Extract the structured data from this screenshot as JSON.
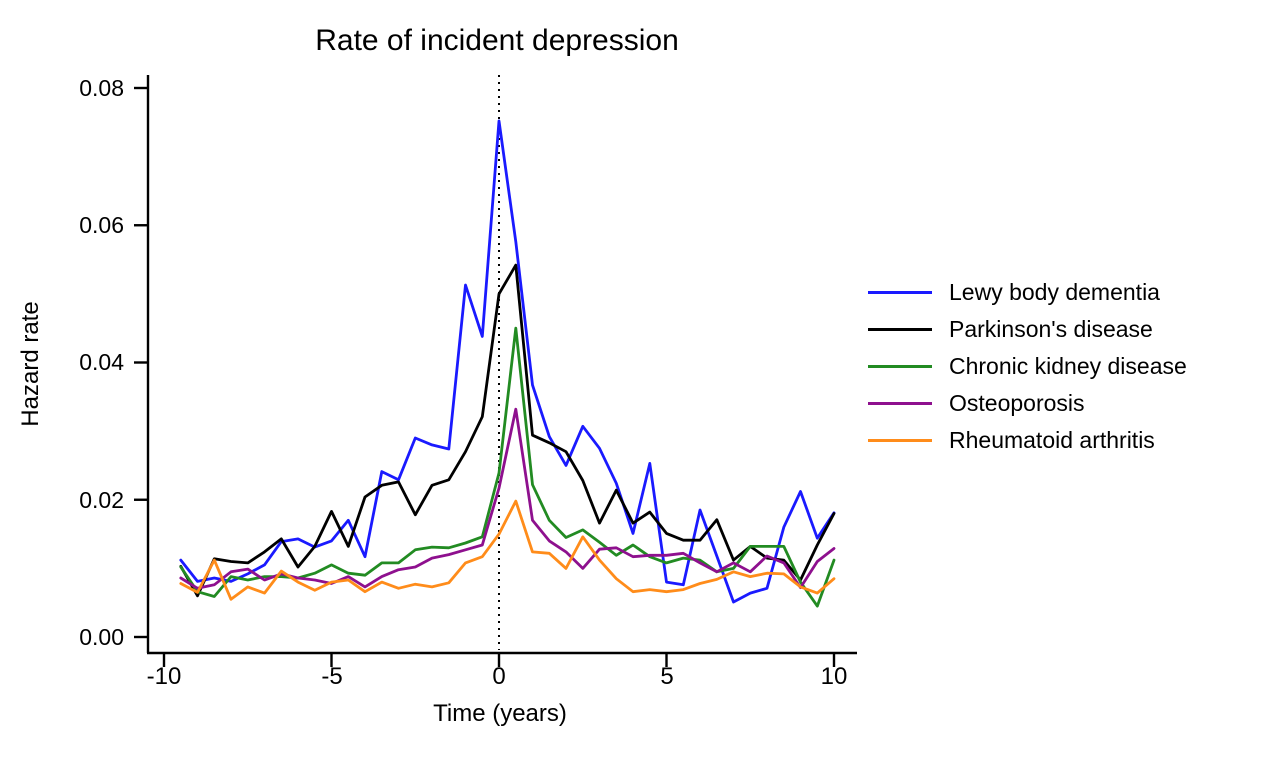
{
  "chart_data": {
    "type": "line",
    "title": "Rate of incident depression",
    "xlabel": "Time (years)",
    "ylabel": "Hazard rate",
    "xlim": [
      -10.4,
      10.7
    ],
    "ylim": [
      0,
      0.08
    ],
    "grid": false,
    "legend_position": "right-outside",
    "reference_line_x": 0,
    "reference_line_style": "dotted",
    "xticks": [
      {
        "label": "-10",
        "value": -10
      },
      {
        "label": "-5",
        "value": -5
      },
      {
        "label": "0",
        "value": 0
      },
      {
        "label": "5",
        "value": 5
      },
      {
        "label": "10",
        "value": 10
      }
    ],
    "yticks": [
      {
        "label": "0.00",
        "value": 0.0
      },
      {
        "label": "0.02",
        "value": 0.02
      },
      {
        "label": "0.04",
        "value": 0.04
      },
      {
        "label": "0.06",
        "value": 0.06
      },
      {
        "label": "0.08",
        "value": 0.08
      }
    ],
    "x": [
      -9.5,
      -9,
      -8.5,
      -8,
      -7.5,
      -7,
      -6.5,
      -6,
      -5.5,
      -5,
      -4.5,
      -4,
      -3.5,
      -3,
      -2.5,
      -2,
      -1.5,
      -1,
      -0.5,
      0,
      0.5,
      1,
      1.5,
      2,
      2.5,
      3,
      3.5,
      4,
      4.5,
      5,
      5.5,
      6,
      6.5,
      7,
      7.5,
      8,
      8.5,
      9,
      9.5,
      10
    ],
    "series": [
      {
        "name": "Lewy body dementia",
        "color": "#1a1aff",
        "values": [
          0.0112,
          0.0081,
          0.0086,
          0.0081,
          0.0092,
          0.0105,
          0.0139,
          0.0143,
          0.0131,
          0.014,
          0.017,
          0.0117,
          0.0241,
          0.0229,
          0.029,
          0.028,
          0.0274,
          0.0513,
          0.0438,
          0.0752,
          0.0576,
          0.0367,
          0.0292,
          0.025,
          0.0307,
          0.0275,
          0.0224,
          0.0151,
          0.0253,
          0.008,
          0.0076,
          0.0185,
          0.0118,
          0.0051,
          0.0064,
          0.0071,
          0.016,
          0.0212,
          0.0144,
          0.0181
        ]
      },
      {
        "name": "Parkinson's disease",
        "color": "#000000",
        "values": [
          0.0103,
          0.006,
          0.0114,
          0.011,
          0.0108,
          0.0124,
          0.0143,
          0.0102,
          0.0132,
          0.0183,
          0.0132,
          0.0204,
          0.0221,
          0.0226,
          0.0178,
          0.0221,
          0.0229,
          0.027,
          0.0321,
          0.05,
          0.0542,
          0.0294,
          0.0283,
          0.027,
          0.0228,
          0.0166,
          0.0214,
          0.0166,
          0.0182,
          0.0151,
          0.0141,
          0.0141,
          0.0171,
          0.0112,
          0.0132,
          0.0115,
          0.0112,
          0.0083,
          0.0134,
          0.018
        ]
      },
      {
        "name": "Chronic kidney disease",
        "color": "#228b22",
        "values": [
          0.0102,
          0.0066,
          0.0059,
          0.0088,
          0.0083,
          0.0088,
          0.0088,
          0.0086,
          0.0093,
          0.0105,
          0.0093,
          0.009,
          0.0108,
          0.0108,
          0.0127,
          0.0131,
          0.013,
          0.0137,
          0.0146,
          0.0239,
          0.045,
          0.0222,
          0.017,
          0.0145,
          0.0156,
          0.0138,
          0.0119,
          0.0134,
          0.0117,
          0.0108,
          0.0115,
          0.0112,
          0.0095,
          0.01,
          0.0132,
          0.0132,
          0.0132,
          0.008,
          0.0045,
          0.0112
        ]
      },
      {
        "name": "Osteoporosis",
        "color": "#8e108e",
        "values": [
          0.0086,
          0.0071,
          0.0076,
          0.0095,
          0.0099,
          0.0083,
          0.0092,
          0.0086,
          0.0083,
          0.0078,
          0.0088,
          0.0073,
          0.0088,
          0.0098,
          0.0102,
          0.0115,
          0.012,
          0.0127,
          0.0134,
          0.0217,
          0.0332,
          0.017,
          0.014,
          0.0124,
          0.01,
          0.0128,
          0.013,
          0.0117,
          0.0119,
          0.0119,
          0.0122,
          0.0108,
          0.0095,
          0.0108,
          0.0095,
          0.0118,
          0.0108,
          0.0072,
          0.011,
          0.0129
        ]
      },
      {
        "name": "Rheumatoid arthritis",
        "color": "#ff8c1a",
        "values": [
          0.0078,
          0.0065,
          0.0112,
          0.0055,
          0.0073,
          0.0064,
          0.0096,
          0.008,
          0.0068,
          0.008,
          0.0083,
          0.0066,
          0.008,
          0.0071,
          0.0077,
          0.0073,
          0.0079,
          0.0108,
          0.0117,
          0.015,
          0.0198,
          0.0124,
          0.0122,
          0.01,
          0.0146,
          0.0112,
          0.0085,
          0.0066,
          0.0069,
          0.0066,
          0.0069,
          0.0078,
          0.0084,
          0.0095,
          0.0088,
          0.0093,
          0.0092,
          0.0073,
          0.0064,
          0.0085
        ]
      }
    ]
  }
}
